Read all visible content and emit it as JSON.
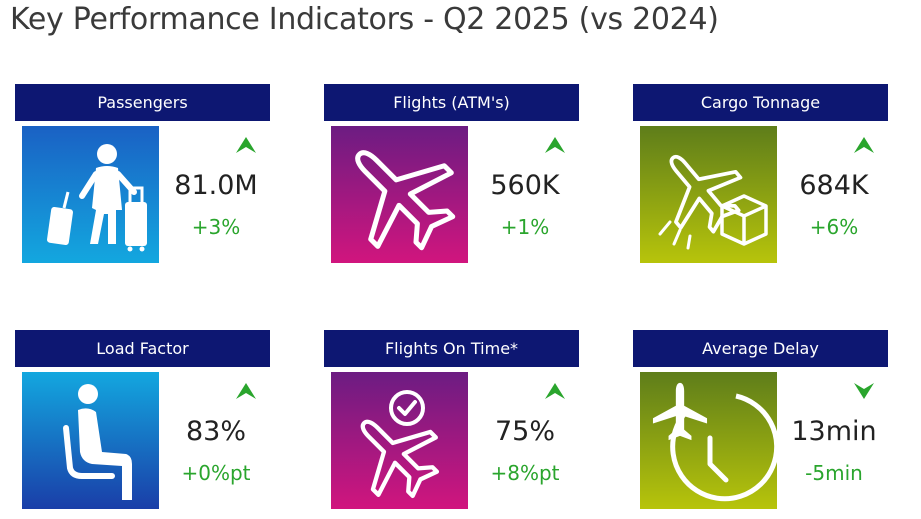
{
  "page": {
    "title": "Key Performance Indicators - Q2 2025 (vs 2024)"
  },
  "colors": {
    "header_bg": "#0d1772",
    "positive": "#2aa52d",
    "value_text": "#222222"
  },
  "kpis": [
    {
      "label": "Passengers",
      "value": "81.0M",
      "change": "+3%",
      "trend": "up",
      "icon": "traveler-with-luggage-icon"
    },
    {
      "label": "Flights (ATM's)",
      "value": "560K",
      "change": "+1%",
      "trend": "up",
      "icon": "airplane-icon"
    },
    {
      "label": "Cargo Tonnage",
      "value": "684K",
      "change": "+6%",
      "trend": "up",
      "icon": "cargo-plane-box-icon"
    },
    {
      "label": "Load Factor",
      "value": "83%",
      "change": "+0%pt",
      "trend": "up",
      "icon": "seated-passenger-icon"
    },
    {
      "label": "Flights On Time*",
      "value": "75%",
      "change": "+8%pt",
      "trend": "up",
      "icon": "airplane-on-time-icon"
    },
    {
      "label": "Average Delay",
      "value": "13min",
      "change": "-5min",
      "trend": "down",
      "icon": "plane-clock-icon"
    }
  ]
}
